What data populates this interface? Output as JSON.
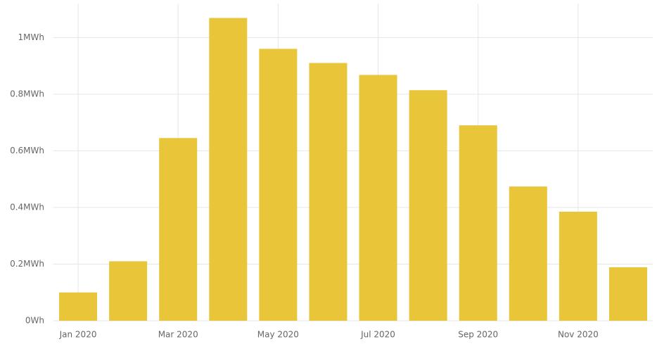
{
  "chart_data": {
    "type": "bar",
    "categories": [
      "Jan 2020",
      null,
      "Mar 2020",
      null,
      "May 2020",
      null,
      "Jul 2020",
      null,
      "Sep 2020",
      null,
      "Nov 2020",
      null
    ],
    "values": [
      0.1,
      0.21,
      0.645,
      1.069,
      0.96,
      0.91,
      0.868,
      0.814,
      0.69,
      0.474,
      0.385,
      0.189
    ],
    "color": "#e9c53a",
    "ylim": [
      0,
      1.12
    ],
    "yticks": [
      {
        "value": 0,
        "label": "0Wh"
      },
      {
        "value": 0.2,
        "label": "0.2MWh"
      },
      {
        "value": 0.4,
        "label": "0.4MWh"
      },
      {
        "value": 0.6,
        "label": "0.6MWh"
      },
      {
        "value": 0.8,
        "label": "0.8MWh"
      },
      {
        "value": 1,
        "label": "1MWh"
      }
    ],
    "grid": true
  }
}
